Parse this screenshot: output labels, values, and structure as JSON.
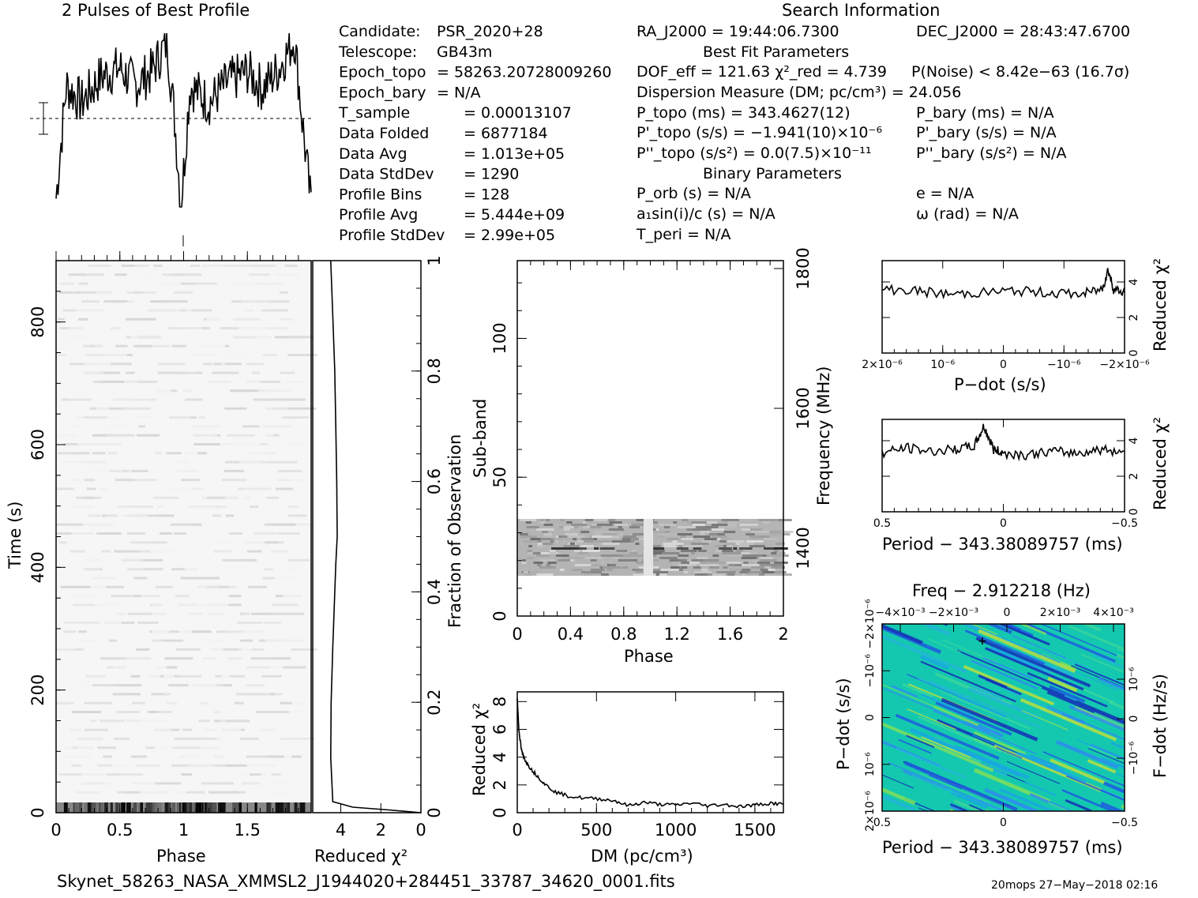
{
  "header": {
    "profile_title": "2 Pulses of Best Profile",
    "search_title": "Search Information",
    "best_fit_title": "Best Fit Parameters",
    "binary_title": "Binary Parameters"
  },
  "info_left": [
    {
      "label": "Candidate:",
      "value": "PSR_2020+28"
    },
    {
      "label": "Telescope:",
      "value": "GB43m"
    },
    {
      "label": "Epoch_topo",
      "value": "= 58263.20728009260"
    },
    {
      "label": "Epoch_bary",
      "value": "= N/A"
    },
    {
      "label": "T_sample",
      "value": "=  0.00013107"
    },
    {
      "label": "Data Folded",
      "value": "=  6877184"
    },
    {
      "label": "Data Avg",
      "value": "=  1.013e+05"
    },
    {
      "label": "Data StdDev",
      "value": "=  1290"
    },
    {
      "label": "Profile Bins",
      "value": "=  128"
    },
    {
      "label": "Profile Avg",
      "value": "=  5.444e+09"
    },
    {
      "label": "Profile StdDev",
      "value": "=  2.99e+05"
    }
  ],
  "search_info": {
    "ra": "RA_J2000 = 19:44:06.7300",
    "dec": "DEC_J2000 = 28:43:47.6700",
    "dof": "DOF_eff = 121.63  χ²_red = 4.739",
    "p_noise": "P(Noise) < 8.42e−63  (16.7σ)",
    "dm": "Dispersion Measure (DM; pc/cm³) = 24.056",
    "p_topo": "P_topo (ms) =  343.4627(12)",
    "p_bary": "P_bary (ms) = N/A",
    "pd_topo": "P'_topo (s/s) = −1.941(10)×10⁻⁶",
    "pd_bary": "P'_bary (s/s) = N/A",
    "pdd_topo": "P''_topo (s/s²) = 0.0(7.5)×10⁻¹¹",
    "pdd_bary": "P''_bary (s/s²) = N/A",
    "p_orb": "P_orb (s) = N/A",
    "ecc": "e = N/A",
    "a1sini": "a₁sin(i)/c (s) = N/A",
    "omega": "ω (rad) = N/A",
    "t_peri": "T_peri = N/A"
  },
  "footer": {
    "filename": "Skynet_58263_NASA_XMMSL2_J1944020+284451_33787_34620_0001.fits",
    "stamp": "20mops 27−May−2018 02:16"
  },
  "chart_data": [
    {
      "type": "line",
      "name": "profile",
      "title": "2 Pulses of Best Profile",
      "xlim": [
        0,
        2
      ],
      "description_points": [
        [
          0,
          0.05
        ],
        [
          0.08,
          0.7
        ],
        [
          0.2,
          0.6
        ],
        [
          0.35,
          0.75
        ],
        [
          0.5,
          0.8
        ],
        [
          0.62,
          0.7
        ],
        [
          0.75,
          0.78
        ],
        [
          0.87,
          0.95
        ],
        [
          0.93,
          0.5
        ],
        [
          0.98,
          0.0
        ],
        [
          1.05,
          0.7
        ],
        [
          1.2,
          0.6
        ],
        [
          1.35,
          0.72
        ],
        [
          1.5,
          0.78
        ],
        [
          1.62,
          0.68
        ],
        [
          1.75,
          0.8
        ],
        [
          1.87,
          0.97
        ],
        [
          1.93,
          0.5
        ],
        [
          2.0,
          0.0
        ]
      ]
    },
    {
      "type": "heatmap",
      "name": "time-phase",
      "xlabel": "Phase",
      "ylabel": "Time (s)",
      "xticks": [
        "0",
        "0.5",
        "1",
        "1.5"
      ],
      "yticks": [
        "0",
        "200",
        "400",
        "600",
        "800"
      ],
      "xlim": [
        0,
        2
      ],
      "ylim": [
        0,
        900
      ]
    },
    {
      "type": "line",
      "name": "time-chi2",
      "xlabel": "Reduced χ²",
      "ylabel": "Fraction of Observation",
      "xticks": [
        "4",
        "2",
        "0"
      ],
      "yticks": [
        "0",
        "0.2",
        "0.4",
        "0.6",
        "0.8",
        "1"
      ],
      "xlim": [
        5.4,
        0
      ],
      "ylim": [
        0,
        1
      ],
      "x": [
        0,
        1.6,
        3.4,
        4.4,
        4.5,
        4.48,
        4.4,
        4.25,
        4.18,
        4.2,
        4.25,
        4.3,
        4.4,
        4.5
      ],
      "y": [
        0,
        0.005,
        0.01,
        0.02,
        0.1,
        0.2,
        0.3,
        0.45,
        0.5,
        0.6,
        0.7,
        0.8,
        0.9,
        1.0
      ]
    },
    {
      "type": "heatmap",
      "name": "subband-phase",
      "xlabel": "Phase",
      "ylabel": "Sub-band",
      "y2label": "Frequency (MHz)",
      "xticks": [
        "0",
        "0.4",
        "0.8",
        "1.2",
        "1.6",
        "2"
      ],
      "yticks": [
        "0",
        "50",
        "100"
      ],
      "y2ticks": [
        "1400",
        "1600",
        "1800"
      ],
      "xlim": [
        0,
        2
      ],
      "ylim": [
        0,
        128
      ],
      "band_rows": [
        15,
        35
      ]
    },
    {
      "type": "line",
      "name": "dm-chi2",
      "xlabel": "DM (pc/cm³)",
      "ylabel": "Reduced χ²",
      "xticks": [
        "0",
        "500",
        "1000",
        "1500"
      ],
      "yticks": [
        "0",
        "2",
        "4",
        "6",
        "8"
      ],
      "xlim": [
        0,
        1680
      ],
      "ylim": [
        0,
        8.7
      ],
      "x": [
        0,
        10,
        25,
        40,
        60,
        90,
        130,
        180,
        240,
        320,
        420,
        520,
        620,
        700,
        800,
        900,
        1000,
        1100,
        1200,
        1300,
        1400,
        1500,
        1600,
        1680
      ],
      "y": [
        8.2,
        6.0,
        4.6,
        4.0,
        3.6,
        3.1,
        2.6,
        2.0,
        1.5,
        1.2,
        1.05,
        1.0,
        0.85,
        0.5,
        0.75,
        0.6,
        0.55,
        0.7,
        0.5,
        0.6,
        0.45,
        0.55,
        0.7,
        0.6
      ]
    },
    {
      "type": "line",
      "name": "pdot-chi2",
      "xlabel": "P−dot (s/s)",
      "ylabel": "Reduced χ²",
      "xticks": [
        "2×10⁻⁶",
        "10⁻⁶",
        "0",
        "−10⁻⁶",
        "−2×10⁻⁶"
      ],
      "yticks": [
        "0",
        "2",
        "4"
      ],
      "xlim": [
        2.2e-06,
        -2.2e-06
      ],
      "ylim": [
        0,
        5.2
      ],
      "x": [
        2.2e-06,
        1.6e-06,
        1e-06,
        4e-07,
        -2e-07,
        -8e-07,
        -1.4e-06,
        -1.8e-06,
        -1.9e-06,
        -2e-06,
        -2.2e-06
      ],
      "y": [
        3.6,
        3.5,
        3.3,
        3.4,
        3.5,
        3.4,
        3.3,
        3.6,
        4.7,
        3.6,
        3.4
      ]
    },
    {
      "type": "line",
      "name": "period-chi2",
      "xlabel": "Period − 343.38089757 (ms)",
      "ylabel": "Reduced χ²",
      "xticks": [
        "0.5",
        "0",
        "−0.5"
      ],
      "yticks": [
        "0",
        "2",
        "4"
      ],
      "xlim": [
        0.5,
        -0.5
      ],
      "ylim": [
        0,
        5.2
      ],
      "x": [
        0.5,
        0.4,
        0.3,
        0.2,
        0.12,
        0.08,
        0.04,
        0.0,
        -0.1,
        -0.2,
        -0.3,
        -0.4,
        -0.5
      ],
      "y": [
        3.3,
        3.6,
        3.4,
        3.5,
        3.7,
        4.8,
        3.5,
        3.3,
        3.2,
        3.4,
        3.3,
        3.5,
        3.4
      ]
    },
    {
      "type": "heatmap",
      "name": "ppdot-plane",
      "title": "Freq − 2.912218 (Hz)",
      "xlabel": "Period − 343.38089757 (ms)",
      "ylabel": "P−dot (s/s)",
      "y2label": "F−dot (Hz/s)",
      "xticks": [
        "0.5",
        "0",
        "−0.5"
      ],
      "x2ticks": [
        "−4×10⁻³",
        "−2×10⁻³",
        "0",
        "2×10⁻³",
        "4×10⁻³"
      ],
      "yticks": [
        "2×10⁻⁶",
        "10⁻⁶",
        "0",
        "−10⁻⁶",
        "−2×10⁻⁶"
      ],
      "y2ticks": [
        "−10⁻⁶",
        "0",
        "10⁻⁶"
      ],
      "best": {
        "period": 0.08,
        "pdot": -1.941e-06
      }
    }
  ]
}
